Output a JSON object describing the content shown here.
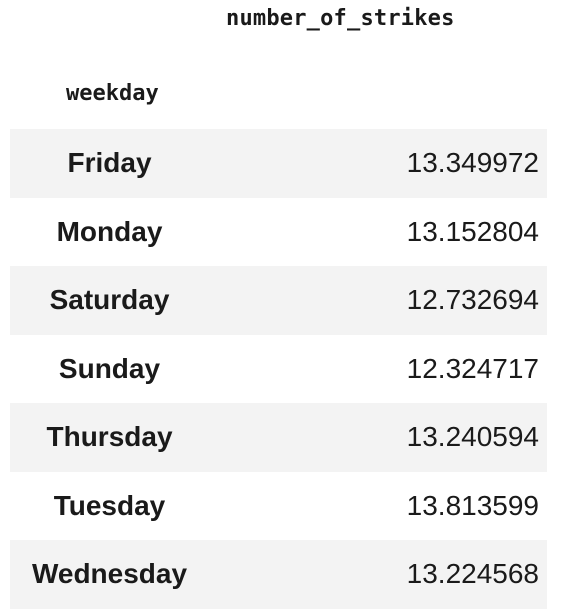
{
  "table": {
    "column_header": "number_of_strikes",
    "index_header": "weekday",
    "rows": [
      {
        "weekday": "Friday",
        "number_of_strikes": "13.349972"
      },
      {
        "weekday": "Monday",
        "number_of_strikes": "13.152804"
      },
      {
        "weekday": "Saturday",
        "number_of_strikes": "12.732694"
      },
      {
        "weekday": "Sunday",
        "number_of_strikes": "12.324717"
      },
      {
        "weekday": "Thursday",
        "number_of_strikes": "13.240594"
      },
      {
        "weekday": "Tuesday",
        "number_of_strikes": "13.813599"
      },
      {
        "weekday": "Wednesday",
        "number_of_strikes": "13.224568"
      }
    ]
  },
  "colors": {
    "text": "#1a1a1a",
    "stripe": "#f3f3f3",
    "background": "#ffffff"
  }
}
